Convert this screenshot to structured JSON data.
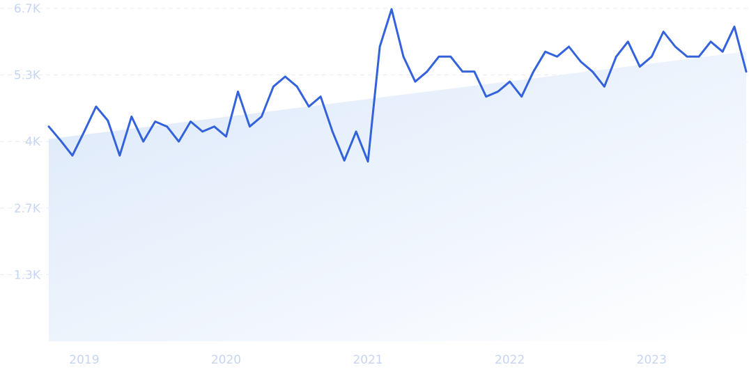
{
  "chart_data": {
    "type": "line",
    "title": "",
    "xlabel": "",
    "ylabel": "",
    "x_start": "2018-10",
    "x_ticks": [
      "2019",
      "2020",
      "2021",
      "2022",
      "2023"
    ],
    "y_ticks": [
      "1.3K",
      "2.7K",
      "4K",
      "5.3K",
      "6.7K"
    ],
    "y_tick_values": [
      1333,
      2667,
      4000,
      5333,
      6667
    ],
    "ylim": [
      0,
      6667
    ],
    "grid": true,
    "legend": "none",
    "colors": {
      "line": "#3362db",
      "trend_fill_top": "#dbe8fa",
      "trend_fill_bottom": "#ffffff",
      "tick_text": "#c7d5f2",
      "grid": "#e6ebf5"
    },
    "x": [
      "2018-10",
      "2018-11",
      "2018-12",
      "2019-01",
      "2019-02",
      "2019-03",
      "2019-04",
      "2019-05",
      "2019-06",
      "2019-07",
      "2019-08",
      "2019-09",
      "2019-10",
      "2019-11",
      "2019-12",
      "2020-01",
      "2020-02",
      "2020-03",
      "2020-04",
      "2020-05",
      "2020-06",
      "2020-07",
      "2020-08",
      "2020-09",
      "2020-10",
      "2020-11",
      "2020-12",
      "2021-01",
      "2021-02",
      "2021-03",
      "2021-04",
      "2021-05",
      "2021-06",
      "2021-07",
      "2021-08",
      "2021-09",
      "2021-10",
      "2021-11",
      "2021-12",
      "2022-01",
      "2022-02",
      "2022-03",
      "2022-04",
      "2022-05",
      "2022-06",
      "2022-07",
      "2022-08",
      "2022-09",
      "2022-10",
      "2022-11",
      "2022-12",
      "2023-01",
      "2023-02",
      "2023-03",
      "2023-04",
      "2023-05",
      "2023-06",
      "2023-07",
      "2023-08",
      "2023-09"
    ],
    "series": [
      {
        "values": [
          4300,
          4020,
          3720,
          4200,
          4700,
          4420,
          3720,
          4500,
          4000,
          4400,
          4300,
          4000,
          4400,
          4200,
          4300,
          4100,
          5000,
          4300,
          4500,
          5100,
          5300,
          5100,
          4700,
          4900,
          4200,
          3620,
          4200,
          3600,
          5900,
          6650,
          5700,
          5200,
          5400,
          5700,
          5700,
          5400,
          5400,
          4900,
          5000,
          5200,
          4900,
          5400,
          5800,
          5700,
          5900,
          5600,
          5400,
          5100,
          5700,
          6000,
          5500,
          5700,
          6200,
          5900,
          5700,
          5700,
          6000,
          5800,
          6300,
          5400
        ]
      }
    ],
    "trend": {
      "start": 4050,
      "end": 5800
    }
  }
}
